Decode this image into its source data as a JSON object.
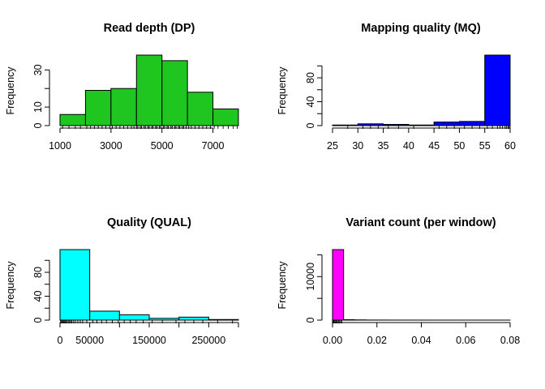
{
  "chart_data": [
    {
      "type": "histogram",
      "title": "Read depth (DP)",
      "ylabel": "Frequency",
      "color": "#1fc61f",
      "bins": [
        1000,
        2000,
        3000,
        4000,
        5000,
        6000,
        7000,
        8000
      ],
      "values": [
        6,
        19,
        20,
        38,
        35,
        18,
        9
      ],
      "xlim": [
        1000,
        8000
      ],
      "ylim": [
        0,
        38
      ],
      "xticks": [
        1000,
        3000,
        5000,
        7000
      ],
      "xtick_labels": [
        "1000",
        "3000",
        "5000",
        "7000"
      ],
      "yticks": [
        0,
        10,
        20,
        30
      ],
      "ytick_labels": [
        "0",
        "10",
        "",
        "30"
      ],
      "rug": [
        1100,
        1350,
        1600,
        1800,
        2050,
        2200,
        2350,
        2500,
        2650,
        2800,
        2950,
        3050,
        3200,
        3350,
        3500,
        3650,
        3800,
        3900,
        4000,
        4050,
        4150,
        4200,
        4300,
        4350,
        4450,
        4500,
        4600,
        4650,
        4750,
        4800,
        4900,
        4950,
        5050,
        5100,
        5200,
        5250,
        5350,
        5400,
        5500,
        5550,
        5650,
        5700,
        5800,
        5850,
        5950,
        6050,
        6150,
        6300,
        6450,
        6600,
        6750,
        6900,
        7050,
        7200,
        7400,
        7600,
        7800,
        7950
      ]
    },
    {
      "type": "histogram",
      "title": "Mapping quality (MQ)",
      "ylabel": "Frequency",
      "color": "#0000ff",
      "bins": [
        25,
        30,
        35,
        40,
        45,
        50,
        55,
        60
      ],
      "values": [
        1,
        3,
        2,
        1,
        6,
        7,
        118
      ],
      "xlim": [
        25,
        60
      ],
      "ylim": [
        0,
        118
      ],
      "xticks": [
        25,
        30,
        35,
        40,
        45,
        50,
        55,
        60
      ],
      "xtick_labels": [
        "25",
        "30",
        "35",
        "40",
        "45",
        "50",
        "55",
        "60"
      ],
      "yticks": [
        0,
        20,
        40,
        60,
        80,
        100
      ],
      "ytick_labels": [
        "0",
        "",
        "40",
        "",
        "80",
        ""
      ],
      "rug": [
        28,
        31,
        32.5,
        34,
        36,
        38,
        41,
        46,
        47.5,
        49,
        51,
        52.5,
        54,
        55.5,
        56.5,
        57.5,
        58,
        58.5,
        59,
        59.3,
        59.6,
        59.8,
        60
      ]
    },
    {
      "type": "histogram",
      "title": "Quality (QUAL)",
      "ylabel": "Frequency",
      "color": "#00ffff",
      "bins": [
        0,
        50000,
        100000,
        150000,
        200000,
        250000,
        300000
      ],
      "values": [
        118,
        15,
        9,
        3,
        5,
        1
      ],
      "xlim": [
        0,
        300000
      ],
      "ylim": [
        0,
        118
      ],
      "xticks": [
        0,
        50000,
        100000,
        150000,
        200000,
        250000,
        300000
      ],
      "xtick_labels": [
        "0",
        "50000",
        "",
        "150000",
        "",
        "250000",
        ""
      ],
      "yticks": [
        0,
        20,
        40,
        60,
        80,
        100
      ],
      "ytick_labels": [
        "0",
        "",
        "40",
        "",
        "80",
        ""
      ],
      "rug": [
        1000,
        2500,
        4000,
        5500,
        7000,
        8500,
        10000,
        12000,
        14000,
        16000,
        18000,
        20000,
        23000,
        26000,
        30000,
        34000,
        38000,
        45000,
        55000,
        62000,
        70000,
        78000,
        88000,
        98000,
        108000,
        118000,
        128000,
        140000,
        155000,
        172000,
        195000,
        210000,
        225000,
        240000,
        265000,
        290000
      ]
    },
    {
      "type": "histogram",
      "title": "Variant count (per window)",
      "ylabel": "Frequency",
      "color": "#ff00ff",
      "bins": [
        0,
        0.005,
        0.01,
        0.015,
        0.02,
        0.025,
        0.03,
        0.035,
        0.04,
        0.045,
        0.05,
        0.055,
        0.06,
        0.065,
        0.07,
        0.075,
        0.08
      ],
      "values": [
        16200,
        100,
        50,
        20,
        15,
        10,
        8,
        5,
        5,
        3,
        3,
        2,
        2,
        1,
        1,
        1
      ],
      "xlim": [
        0,
        0.08
      ],
      "ylim": [
        0,
        16200
      ],
      "xticks": [
        0,
        0.02,
        0.04,
        0.06,
        0.08
      ],
      "xtick_labels": [
        "0.00",
        "0.02",
        "0.04",
        "0.06",
        "0.08"
      ],
      "yticks": [
        0,
        5000,
        10000,
        15000
      ],
      "ytick_labels": [
        "0",
        "",
        "10000",
        ""
      ],
      "rug": [
        0,
        0.0003,
        0.0006,
        0.001,
        0.0014,
        0.0018,
        0.0022,
        0.0027,
        0.0032,
        0.0037,
        0.0042
      ]
    }
  ]
}
